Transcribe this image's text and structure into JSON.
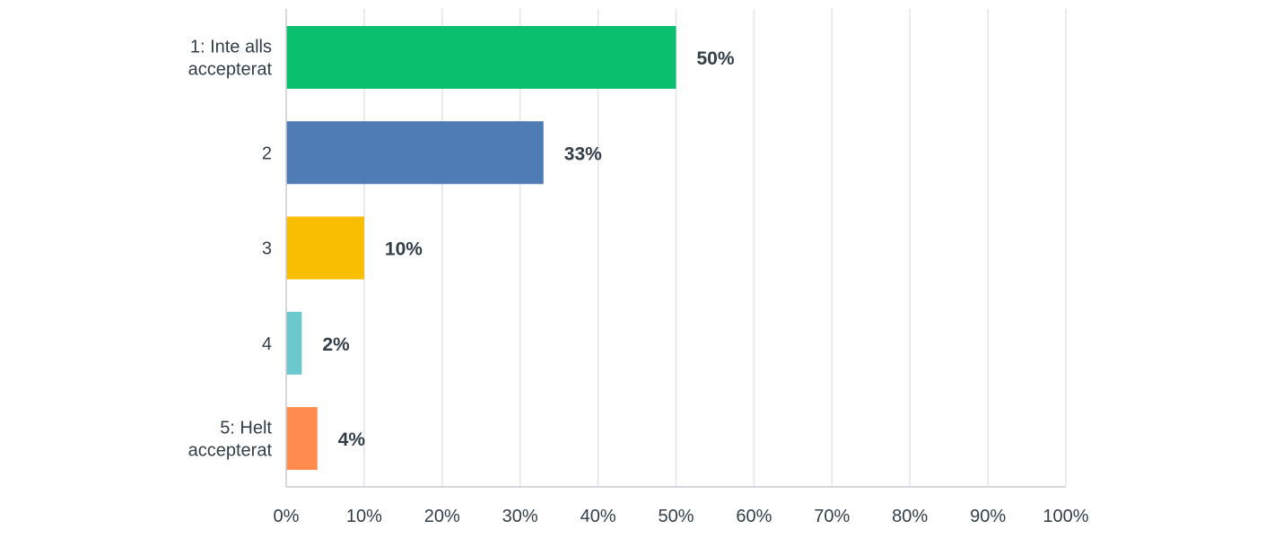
{
  "chart_data": {
    "type": "bar",
    "orientation": "horizontal",
    "categories": [
      [
        "1: Inte alls",
        "accepterat"
      ],
      [
        "2"
      ],
      [
        "3"
      ],
      [
        "4"
      ],
      [
        "5: Helt",
        "accepterat"
      ]
    ],
    "values": [
      50,
      33,
      10,
      2,
      4
    ],
    "value_labels": [
      "50%",
      "33%",
      "10%",
      "2%",
      "4%"
    ],
    "bar_colors": [
      "#0abf6f",
      "#507cb6",
      "#f9be00",
      "#6bc8cd",
      "#ff8b4f"
    ],
    "xlim": [
      0,
      100
    ],
    "x_ticks": [
      0,
      10,
      20,
      30,
      40,
      50,
      60,
      70,
      80,
      90,
      100
    ],
    "x_tick_labels": [
      "0%",
      "10%",
      "20%",
      "30%",
      "40%",
      "50%",
      "60%",
      "70%",
      "80%",
      "90%",
      "100%"
    ],
    "grid": true,
    "title": "",
    "xlabel": "",
    "ylabel": ""
  }
}
